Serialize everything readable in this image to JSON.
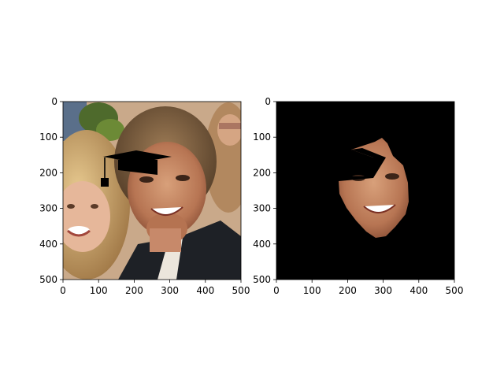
{
  "figure": {
    "background": "#ffffff"
  },
  "chart_data": [
    {
      "type": "image",
      "title": "",
      "xlabel": "",
      "ylabel": "",
      "xlim": [
        0,
        500
      ],
      "ylim": [
        500,
        0
      ],
      "x_ticks": [
        "0",
        "100",
        "200",
        "300",
        "400",
        "500"
      ],
      "y_ticks": [
        "0",
        "100",
        "200",
        "300",
        "400",
        "500"
      ],
      "grid": false,
      "content": "photo-two-people-with-graduation-cap-overlay",
      "overlay": "graduation-cap-icon",
      "colors": {
        "cap": "#000000"
      }
    },
    {
      "type": "image",
      "title": "",
      "xlabel": "",
      "ylabel": "",
      "xlim": [
        0,
        500
      ],
      "ylim": [
        500,
        0
      ],
      "x_ticks": [
        "0",
        "100",
        "200",
        "300",
        "400",
        "500"
      ],
      "y_ticks": [
        "0",
        "100",
        "200",
        "300",
        "400",
        "500"
      ],
      "grid": false,
      "content": "face-segmentation-mask-on-black",
      "colors": {
        "background": "#000000"
      }
    }
  ]
}
